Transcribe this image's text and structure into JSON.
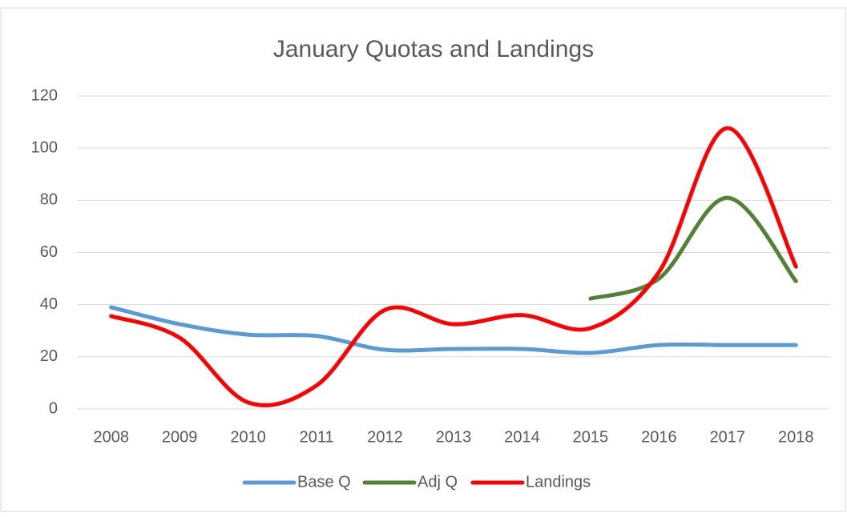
{
  "chart_data": {
    "type": "line",
    "title": "January Quotas and Landings",
    "categories": [
      "2008",
      "2009",
      "2010",
      "2011",
      "2012",
      "2013",
      "2014",
      "2015",
      "2016",
      "2017",
      "2018"
    ],
    "series": [
      {
        "name": "Base Q",
        "color": "#5b9bd5",
        "values": [
          39,
          32.5,
          28.5,
          28,
          22.7,
          23,
          23,
          21.5,
          24.5,
          24.5,
          24.5
        ]
      },
      {
        "name": "Adj Q",
        "color": "#548235",
        "values": [
          null,
          null,
          null,
          null,
          null,
          null,
          null,
          42.3,
          50,
          81,
          49
        ]
      },
      {
        "name": "Landings",
        "color": "#ff0000",
        "values": [
          35.6,
          27.3,
          2.5,
          9,
          38,
          32.5,
          36,
          31,
          52.5,
          107.7,
          54.6
        ]
      }
    ],
    "ylim": [
      0,
      120
    ],
    "yticks": [
      0,
      20,
      40,
      60,
      80,
      100,
      120
    ],
    "grid": true,
    "legend": "bottom",
    "smooth": true
  }
}
